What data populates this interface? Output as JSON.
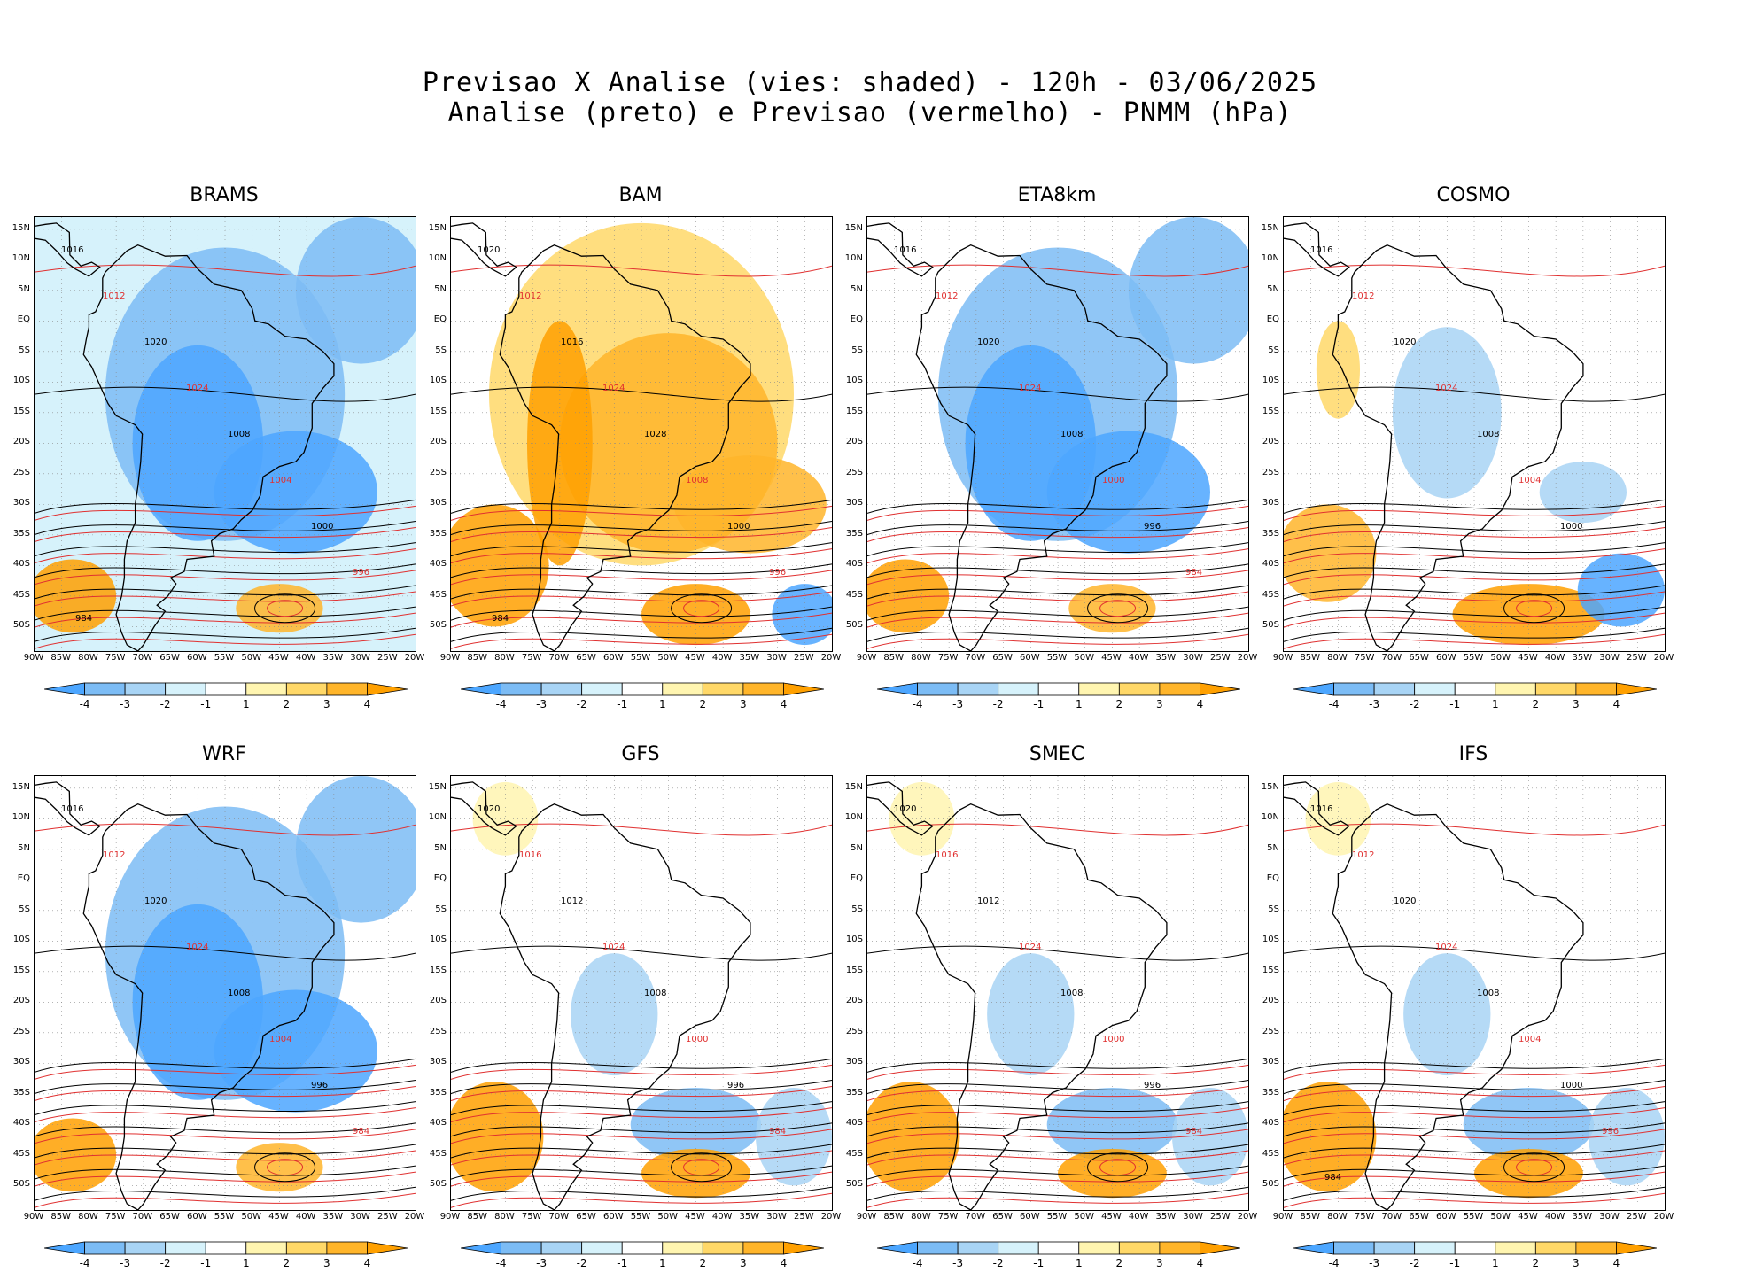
{
  "figure": {
    "title_line1": "Previsao X Analise (vies: shaded) - 120h - 03/06/2025",
    "title_line2": "Analise (preto) e Previsao (vermelho) - PNMM (hPa)"
  },
  "lat_labels": [
    "15N",
    "10N",
    "5N",
    "EQ",
    "5S",
    "10S",
    "15S",
    "20S",
    "25S",
    "30S",
    "35S",
    "40S",
    "45S",
    "50S"
  ],
  "lon_labels": [
    "90W",
    "85W",
    "80W",
    "75W",
    "70W",
    "65W",
    "60W",
    "55W",
    "50W",
    "45W",
    "40W",
    "35W",
    "30W",
    "25W",
    "20W"
  ],
  "colorbar": {
    "labels": [
      "-4",
      "-3",
      "-2",
      "-1",
      "1",
      "2",
      "3",
      "4"
    ],
    "colors": [
      "#4ca6ff",
      "#7cbcf5",
      "#a8d4f5",
      "#d6f2fb",
      "#ffffff",
      "#fff5b0",
      "#ffd868",
      "#ffb52a",
      "#ffa000"
    ]
  },
  "panels": [
    {
      "name": "BRAMS",
      "bias": "negative",
      "contours": [
        "1016",
        "1012",
        "1020",
        "1024",
        "1008",
        "1004",
        "1000",
        "996",
        "984"
      ]
    },
    {
      "name": "BAM",
      "bias": "positive",
      "contours": [
        "1020",
        "1012",
        "1016",
        "1024",
        "1028",
        "1008",
        "1000",
        "996",
        "984"
      ]
    },
    {
      "name": "ETA8km",
      "bias": "negative",
      "contours": [
        "1016",
        "1012",
        "1020",
        "1024",
        "1008",
        "1000",
        "996",
        "984"
      ]
    },
    {
      "name": "COSMO",
      "bias": "mixed",
      "contours": [
        "1016",
        "1012",
        "1020",
        "1024",
        "1008",
        "1004",
        "1000"
      ]
    },
    {
      "name": "WRF",
      "bias": "negative",
      "contours": [
        "1016",
        "1012",
        "1020",
        "1024",
        "1008",
        "1004",
        "996",
        "984"
      ]
    },
    {
      "name": "GFS",
      "bias": "weak",
      "contours": [
        "1020",
        "1016",
        "1012",
        "1024",
        "1008",
        "1000",
        "996",
        "984"
      ]
    },
    {
      "name": "SMEC",
      "bias": "weak",
      "contours": [
        "1020",
        "1016",
        "1012",
        "1024",
        "1008",
        "1000",
        "996",
        "984"
      ]
    },
    {
      "name": "IFS",
      "bias": "weak",
      "contours": [
        "1016",
        "1012",
        "1020",
        "1024",
        "1008",
        "1004",
        "1000",
        "996",
        "984"
      ]
    }
  ]
}
